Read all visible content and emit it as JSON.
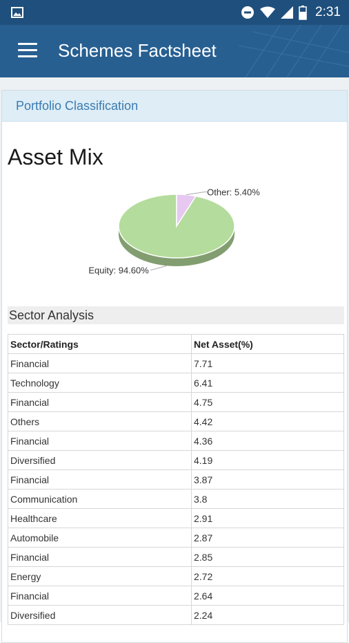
{
  "status_bar": {
    "time": "2:31",
    "icons": [
      "image-icon",
      "do-not-disturb-icon",
      "wifi-icon",
      "signal-icon",
      "battery-icon"
    ]
  },
  "app_bar": {
    "title": "Schemes Factsheet"
  },
  "section": {
    "header": "Portfolio Classification"
  },
  "asset_mix": {
    "title": "Asset Mix",
    "chart_data": {
      "type": "pie",
      "slices": [
        {
          "label": "Equity",
          "value": 94.6,
          "display": "Equity: 94.60%",
          "color": "#b4dc9c"
        },
        {
          "label": "Other",
          "value": 5.4,
          "display": "Other: 5.40%",
          "color": "#e6c8f0"
        }
      ],
      "title": ""
    }
  },
  "sector_analysis": {
    "title": "Sector Analysis",
    "columns": [
      "Sector/Ratings",
      "Net Asset(%)"
    ],
    "rows": [
      [
        "Financial",
        "7.71"
      ],
      [
        "Technology",
        "6.41"
      ],
      [
        "Financial",
        "4.75"
      ],
      [
        "Others",
        "4.42"
      ],
      [
        "Financial",
        "4.36"
      ],
      [
        "Diversified",
        "4.19"
      ],
      [
        "Financial",
        "3.87"
      ],
      [
        "Communication",
        "3.8"
      ],
      [
        "Healthcare",
        "2.91"
      ],
      [
        "Automobile",
        "2.87"
      ],
      [
        "Financial",
        "2.85"
      ],
      [
        "Energy",
        "2.72"
      ],
      [
        "Financial",
        "2.64"
      ],
      [
        "Diversified",
        "2.24"
      ]
    ]
  }
}
